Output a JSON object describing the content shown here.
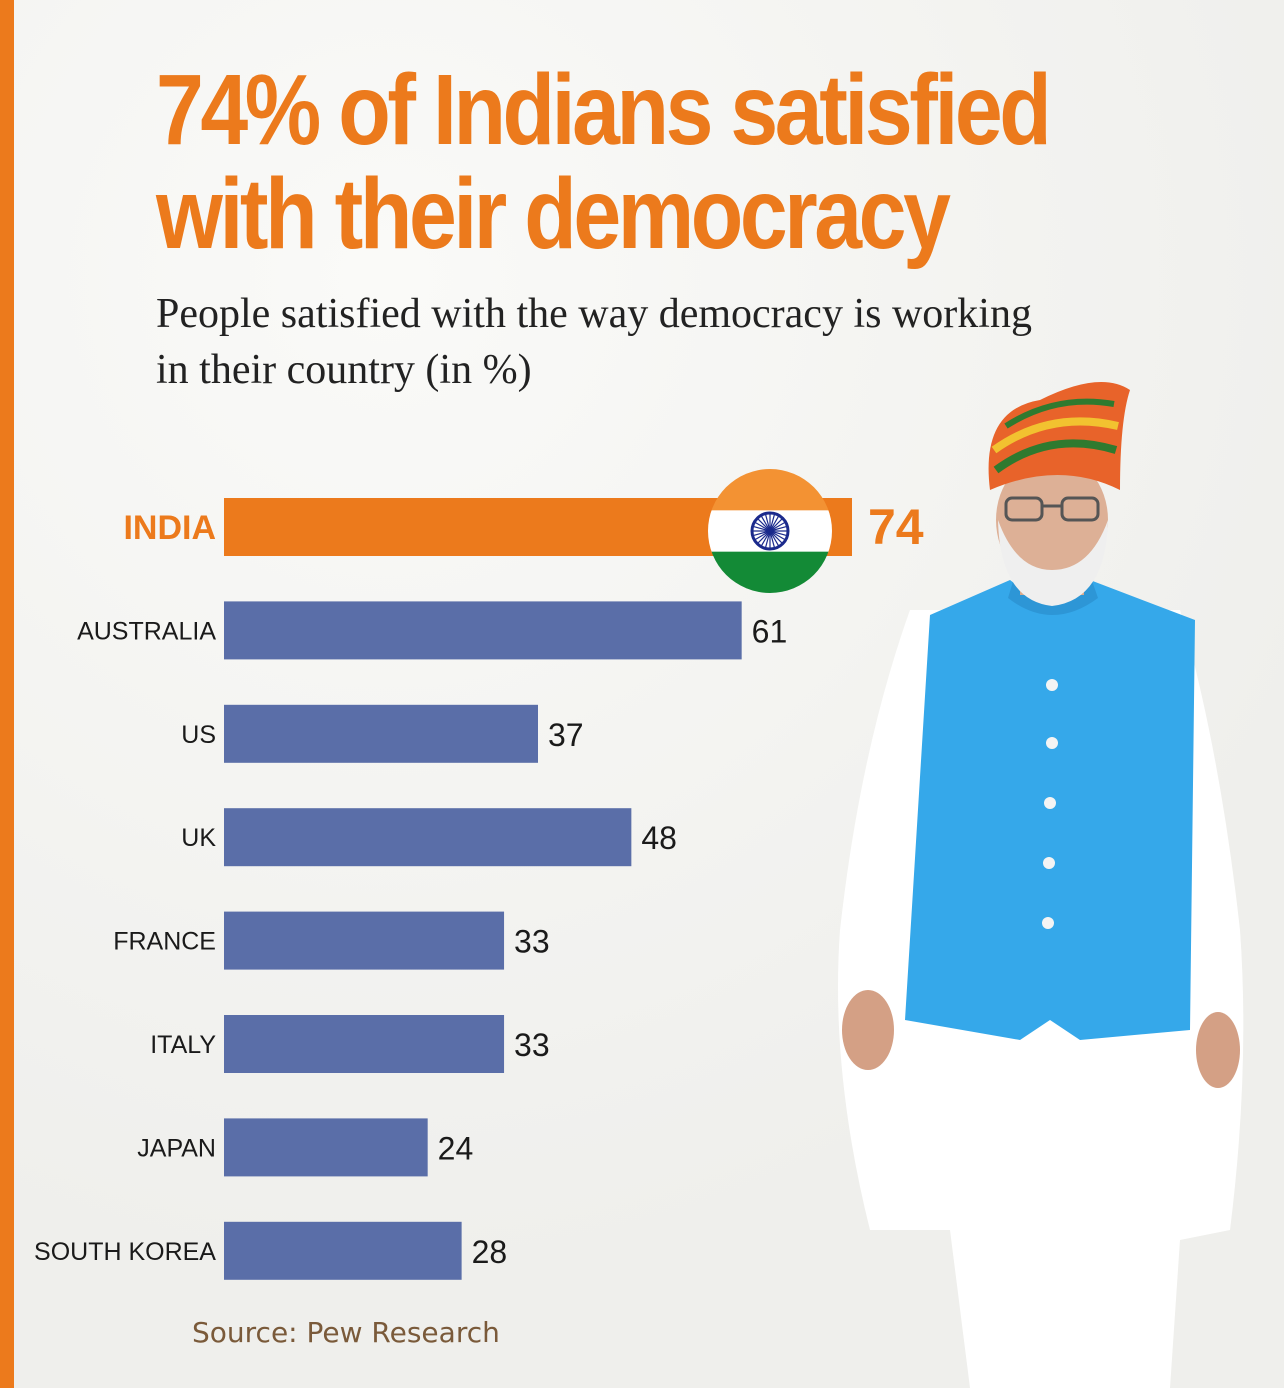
{
  "headline": {
    "line1": "74% of Indians satisfied",
    "line2": "with their democracy"
  },
  "subtitle": "People satisfied with the way democracy is working in their country (in %)",
  "source": "Source: Pew Research",
  "colors": {
    "accent": "#ec7a1c",
    "bar": "#5a6ea8",
    "flag_saffron": "#f39233",
    "flag_green": "#138a36",
    "chakra": "#1b2a8c"
  },
  "chart_data": {
    "type": "bar",
    "orientation": "horizontal",
    "categories": [
      "INDIA",
      "AUSTRALIA",
      "US",
      "UK",
      "FRANCE",
      "ITALY",
      "JAPAN",
      "SOUTH KOREA"
    ],
    "values": [
      74,
      61,
      37,
      48,
      33,
      33,
      24,
      28
    ],
    "highlight": "INDIA",
    "title": "74% of Indians satisfied with their democracy",
    "subtitle": "People satisfied with the way democracy is working in their country (in %)",
    "xlim": [
      0,
      74
    ],
    "grid": false,
    "data_labels": true
  }
}
